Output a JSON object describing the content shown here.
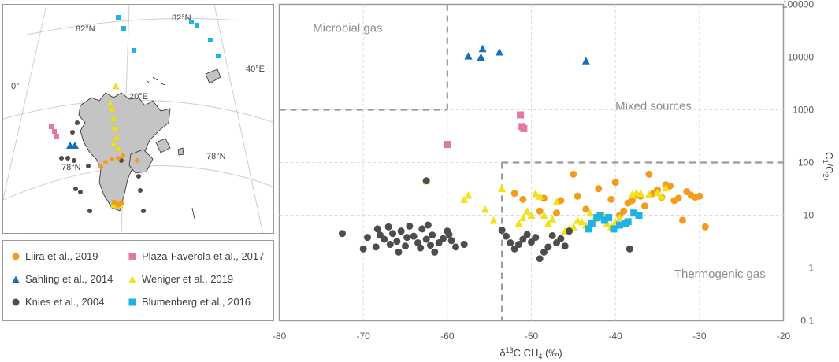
{
  "map": {
    "labels": {
      "lat82_left": "82°N",
      "lat82_right": "82°N",
      "lon0": "0°",
      "lon20": "20°E",
      "lon40": "40°E",
      "lat78_left": "78°N",
      "lat78_right": "78°N"
    }
  },
  "legend": {
    "items": [
      {
        "label": "Liira et al., 2019",
        "color": "#f39c1b",
        "shape": "circle"
      },
      {
        "label": "Plaza-Faverola et al., 2017",
        "color": "#e278a8",
        "shape": "square"
      },
      {
        "label": "Sahling et al., 2014",
        "color": "#1a6fb5",
        "shape": "triangle"
      },
      {
        "label": "Weniger et al., 2019",
        "color": "#f2e21a",
        "shape": "triangle"
      },
      {
        "label": "Knies et al., 2004",
        "color": "#4d4d4d",
        "shape": "circle"
      },
      {
        "label": "Blumenberg et al., 2016",
        "color": "#1fb3e5",
        "shape": "square"
      }
    ]
  },
  "chart_data": {
    "type": "scatter",
    "title": "",
    "xlabel": "δ13C CH4 (‰)",
    "ylabel": "C1/C2+",
    "xlim": [
      -80,
      -20
    ],
    "ylim": [
      0.1,
      100000
    ],
    "yscale": "log",
    "x_ticks": [
      "-80",
      "-70",
      "-60",
      "-50",
      "-40",
      "-30",
      "-20"
    ],
    "y_ticks": [
      "0.1",
      "1",
      "10",
      "100",
      "1000",
      "10000",
      "100000"
    ],
    "regions": [
      {
        "label": "Microbial gas",
        "x": -76,
        "y": 30000
      },
      {
        "label": "Mixed sources",
        "x": -40,
        "y": 1000
      },
      {
        "label": "Thermogenic gas",
        "x": -33,
        "y": 0.65
      }
    ],
    "boundaries": [
      {
        "from": [
          -80,
          1000
        ],
        "to": [
          -60,
          1000
        ]
      },
      {
        "from": [
          -60,
          1000
        ],
        "to": [
          -60,
          100000
        ]
      },
      {
        "from": [
          -53.5,
          100
        ],
        "to": [
          -20,
          100
        ]
      },
      {
        "from": [
          -53.5,
          100
        ],
        "to": [
          -53.5,
          0.1
        ]
      }
    ],
    "series": [
      {
        "name": "Liira et al., 2019",
        "color": "#f39c1b",
        "shape": "circle",
        "points": [
          [
            -52,
            26
          ],
          [
            -51,
            20
          ],
          [
            -49,
            12
          ],
          [
            -48.5,
            21
          ],
          [
            -47,
            11
          ],
          [
            -46.5,
            19
          ],
          [
            -45,
            60
          ],
          [
            -44.5,
            23
          ],
          [
            -43.5,
            13
          ],
          [
            -42,
            32
          ],
          [
            -41,
            9
          ],
          [
            -40.5,
            20
          ],
          [
            -40,
            42
          ],
          [
            -39.5,
            10
          ],
          [
            -39,
            12
          ],
          [
            -38.5,
            17
          ],
          [
            -38,
            19
          ],
          [
            -37.5,
            24
          ],
          [
            -37,
            23
          ],
          [
            -36.5,
            15
          ],
          [
            -36,
            60
          ],
          [
            -35.5,
            26
          ],
          [
            -35,
            30
          ],
          [
            -34.5,
            22
          ],
          [
            -34,
            38
          ],
          [
            -33.5,
            36
          ],
          [
            -33,
            19
          ],
          [
            -32.5,
            21
          ],
          [
            -32,
            8
          ],
          [
            -31.5,
            28
          ],
          [
            -31,
            24
          ],
          [
            -30.5,
            22
          ],
          [
            -30,
            23
          ],
          [
            -29.3,
            6
          ]
        ]
      },
      {
        "name": "Plaza-Faverola et al., 2017",
        "color": "#e278a8",
        "shape": "square",
        "points": [
          [
            -60,
            220
          ],
          [
            -51.3,
            800
          ],
          [
            -51.1,
            480
          ],
          [
            -50.9,
            440
          ]
        ]
      },
      {
        "name": "Sahling et al., 2014",
        "color": "#1a6fb5",
        "shape": "triangle",
        "points": [
          [
            -57.5,
            10500
          ],
          [
            -56,
            10000
          ],
          [
            -55.8,
            14500
          ],
          [
            -53.8,
            12500
          ],
          [
            -43.5,
            8500
          ]
        ]
      },
      {
        "name": "Weniger et al., 2019",
        "color": "#f2e21a",
        "shape": "triangle",
        "points": [
          [
            -62.5,
            45
          ],
          [
            -58,
            20
          ],
          [
            -57.5,
            24
          ],
          [
            -55.5,
            13
          ],
          [
            -54.5,
            8
          ],
          [
            -53.5,
            32
          ],
          [
            -51.5,
            7
          ],
          [
            -51,
            9
          ],
          [
            -50.5,
            12
          ],
          [
            -50,
            10
          ],
          [
            -49.5,
            26
          ],
          [
            -49,
            23
          ],
          [
            -48.5,
            10
          ],
          [
            -48,
            7
          ],
          [
            -47.5,
            8.5
          ],
          [
            -47,
            18
          ],
          [
            -46,
            5
          ],
          [
            -45.5,
            5.5
          ],
          [
            -45,
            6
          ],
          [
            -44.5,
            8
          ],
          [
            -44,
            7.5
          ],
          [
            -43.5,
            6.5
          ],
          [
            -43,
            11
          ],
          [
            -42.5,
            8.5
          ],
          [
            -42,
            9
          ],
          [
            -41.5,
            10.5
          ],
          [
            -41,
            7
          ],
          [
            -40.5,
            6
          ],
          [
            -40,
            7.5
          ],
          [
            -39.5,
            9
          ],
          [
            -38,
            25
          ],
          [
            -37.5,
            27
          ],
          [
            -37,
            26
          ],
          [
            -36,
            25
          ],
          [
            -35,
            27
          ],
          [
            -34.5,
            23
          ],
          [
            -34,
            33
          ]
        ]
      },
      {
        "name": "Knies et al., 2004",
        "color": "#4d4d4d",
        "shape": "circle",
        "points": [
          [
            -72.5,
            4.5
          ],
          [
            -70,
            2.3
          ],
          [
            -69.5,
            3.8
          ],
          [
            -68.5,
            2.5
          ],
          [
            -68.3,
            5.5
          ],
          [
            -68,
            4.2
          ],
          [
            -67.5,
            3.5
          ],
          [
            -67,
            6
          ],
          [
            -66.8,
            2.8
          ],
          [
            -66.5,
            4.5
          ],
          [
            -66,
            3.2
          ],
          [
            -65.8,
            2
          ],
          [
            -65.5,
            5
          ],
          [
            -65,
            2.6
          ],
          [
            -64.8,
            3.8
          ],
          [
            -64.5,
            6.2
          ],
          [
            -64,
            4
          ],
          [
            -63.5,
            3
          ],
          [
            -63.2,
            2.4
          ],
          [
            -63,
            5.5
          ],
          [
            -62.5,
            3.5
          ],
          [
            -62.3,
            6.5
          ],
          [
            -62,
            2.7
          ],
          [
            -61.8,
            4.2
          ],
          [
            -61.5,
            2
          ],
          [
            -61,
            3
          ],
          [
            -60.5,
            3.6
          ],
          [
            -60,
            5
          ],
          [
            -59.8,
            4.3
          ],
          [
            -59.5,
            3.3
          ],
          [
            -59,
            2.5
          ],
          [
            -58,
            2.8
          ],
          [
            -62.5,
            45
          ],
          [
            -53.5,
            5.2
          ],
          [
            -53,
            4
          ],
          [
            -52.5,
            3
          ],
          [
            -52,
            2.3
          ],
          [
            -51.5,
            2.8
          ],
          [
            -51,
            3.5
          ],
          [
            -50.5,
            4.3
          ],
          [
            -50,
            3.1
          ],
          [
            -49.5,
            3.8
          ],
          [
            -49,
            1.5
          ],
          [
            -48.5,
            2
          ],
          [
            -48,
            2.5
          ],
          [
            -47.5,
            4.1
          ],
          [
            -47,
            3
          ],
          [
            -46.5,
            3.6
          ],
          [
            -46,
            2.6
          ],
          [
            -45.5,
            5
          ],
          [
            -38.3,
            2.3
          ]
        ]
      },
      {
        "name": "Blumenberg et al., 2016",
        "color": "#1fb3e5",
        "shape": "square",
        "points": [
          [
            -43.2,
            5.5
          ],
          [
            -42.8,
            7
          ],
          [
            -42.2,
            9
          ],
          [
            -41.8,
            10
          ],
          [
            -41.3,
            8
          ],
          [
            -40.8,
            9
          ],
          [
            -40.2,
            5.5
          ],
          [
            -39.5,
            6.5
          ],
          [
            -38.8,
            7
          ],
          [
            -38.5,
            7.5
          ],
          [
            -37.8,
            11
          ],
          [
            -37.2,
            10
          ]
        ]
      }
    ]
  }
}
